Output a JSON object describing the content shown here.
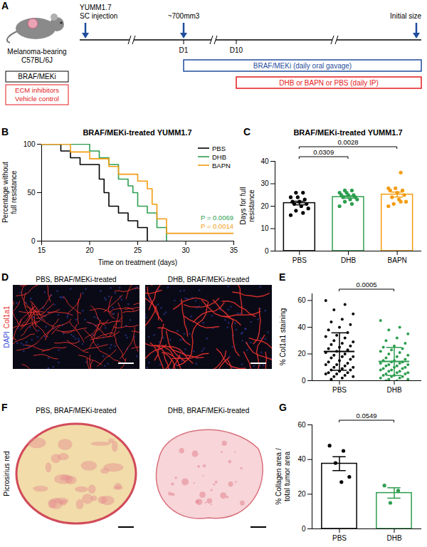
{
  "panel_labels": [
    "A",
    "B",
    "C",
    "D",
    "E",
    "F",
    "G"
  ],
  "schematic": {
    "mouse_label": [
      "Melanoma-bearing",
      "C57BL/6J"
    ],
    "black_box": "BRAF/MEKi",
    "red_box": [
      "ECM inhibitors",
      "Vehicle control"
    ],
    "timeline_labels": [
      [
        "YUMM1.7",
        "SC injection"
      ],
      [
        "~700mm3"
      ],
      [
        "Initial size"
      ]
    ],
    "days": [
      "D1",
      "D10"
    ],
    "treatments": [
      {
        "text": "BRAF/MEKi (daily oral gavage)",
        "color": "#1f4e9c"
      },
      {
        "text": "DHB or BAPN or PBS (daily IP)",
        "color": "#e31a1c"
      }
    ]
  },
  "chart_data": [
    {
      "type": "line",
      "title": "BRAF/MEKi-treated YUMM1.7",
      "x_label": "Time on treatment (days)",
      "y_label": "Percentage without full resistance",
      "xlim": [
        15,
        35
      ],
      "xticks": [
        15,
        20,
        25,
        30,
        35
      ],
      "ylim": [
        0,
        100
      ],
      "yticks": [
        0,
        50,
        100
      ],
      "line_style": "step",
      "legend": "top-right",
      "series": [
        {
          "name": "PBS",
          "color": "#000000",
          "x": [
            15,
            17,
            18,
            19,
            21,
            21.5,
            22,
            23,
            24,
            25,
            26
          ],
          "values": [
            100,
            93,
            86,
            79,
            64,
            50,
            36,
            29,
            21,
            14,
            0
          ]
        },
        {
          "name": "DHB",
          "color": "#2e9e4f",
          "x": [
            15,
            20,
            21,
            22,
            23,
            24,
            24.5,
            25,
            26,
            27,
            28
          ],
          "values": [
            100,
            93,
            86,
            79,
            64,
            57,
            50,
            36,
            29,
            14,
            0
          ]
        },
        {
          "name": "BAPN",
          "color": "#f39c12",
          "x": [
            15,
            18,
            20,
            22,
            23,
            25,
            26,
            26.5,
            27,
            28,
            35
          ],
          "values": [
            100,
            92,
            85,
            77,
            69,
            62,
            54,
            38,
            23,
            8,
            8
          ]
        }
      ],
      "annotations": [
        {
          "text": "P = 0.0069",
          "color": "#2e9e4f"
        },
        {
          "text": "P = 0.0014",
          "color": "#f39c12"
        }
      ]
    },
    {
      "type": "bar",
      "title": "BRAF/MEKi-treated YUMM1.7",
      "y_label": "Days for full resistance",
      "categories": [
        "PBS",
        "DHB",
        "BAPN"
      ],
      "values": [
        21.4,
        24.1,
        25.2
      ],
      "errors": [
        0.8,
        0.5,
        1.1
      ],
      "points": [
        [
          16,
          17,
          18,
          19,
          20,
          21,
          21,
          22,
          22,
          23,
          24,
          24,
          26,
          26
        ],
        [
          20,
          21,
          22,
          23,
          23,
          24,
          24,
          25,
          25,
          25,
          26,
          26,
          27,
          27
        ],
        [
          20,
          22,
          21,
          22,
          23,
          24,
          25,
          26,
          27,
          27,
          28,
          28,
          35
        ]
      ],
      "colors": [
        "#000000",
        "#2e9e4f",
        "#f39c12"
      ],
      "ylim": [
        0,
        40
      ],
      "yticks": [
        0,
        10,
        20,
        30,
        40
      ],
      "comparisons": [
        {
          "groups": [
            "PBS",
            "DHB"
          ],
          "label": "0.0309"
        },
        {
          "groups": [
            "PBS",
            "BAPN"
          ],
          "label": "0.0028"
        }
      ]
    },
    {
      "type": "scatter",
      "y_label": "% Col1a1 staining",
      "categories": [
        "PBS",
        "DHB"
      ],
      "values": [
        21.8,
        14.4
      ],
      "errors": [
        14,
        10.5
      ],
      "points": [
        [
          60,
          57,
          53,
          50,
          46,
          44,
          42,
          40,
          38,
          36,
          34,
          33,
          32,
          30,
          29,
          28,
          27,
          26,
          25,
          24,
          23,
          22,
          21,
          20,
          19,
          18,
          18,
          17,
          16,
          15,
          14,
          13,
          12,
          12,
          11,
          10,
          10,
          9,
          8,
          8,
          7,
          6,
          6,
          5,
          5,
          4,
          3,
          3,
          2,
          1
        ],
        [
          45,
          40,
          38,
          35,
          32,
          30,
          28,
          26,
          25,
          24,
          23,
          22,
          21,
          20,
          19,
          18,
          17,
          16,
          15,
          15,
          14,
          14,
          13,
          13,
          12,
          12,
          11,
          11,
          10,
          10,
          9,
          9,
          8,
          8,
          7,
          7,
          6,
          6,
          5,
          5,
          4,
          4,
          3,
          3,
          2,
          2,
          1,
          1,
          0,
          0
        ]
      ],
      "colors": [
        "#000000",
        "#2e9e4f"
      ],
      "ylim": [
        0,
        65
      ],
      "yticks": [
        0,
        20,
        40,
        60
      ],
      "comparisons": [
        {
          "groups": [
            "PBS",
            "DHB"
          ],
          "label": "0.0005"
        }
      ]
    },
    {
      "type": "bar",
      "y_label": "% Collagen area / total tumor area",
      "categories": [
        "PBS",
        "DHB"
      ],
      "values": [
        37.6,
        20.7
      ],
      "errors": [
        4.0,
        3.0
      ],
      "points": [
        [
          48,
          45,
          38,
          30,
          27
        ],
        [
          25,
          22,
          15
        ]
      ],
      "colors": [
        "#000000",
        "#2e9e4f"
      ],
      "ylim": [
        0,
        60
      ],
      "yticks": [
        0,
        20,
        40,
        60
      ],
      "comparisons": [
        {
          "groups": [
            "PBS",
            "DHB"
          ],
          "label": "0.0549"
        }
      ]
    }
  ],
  "microscopy": {
    "labels": [
      "PBS, BRAF/MEKi-treated",
      "DHB, BRAF/MEKi-treated"
    ],
    "channels": [
      {
        "name": "DAPI",
        "color": "#3b4fd8"
      },
      {
        "name": "Col1a1",
        "color": "#e8322e"
      }
    ]
  },
  "histology": {
    "stain": "Picrosirius red",
    "labels": [
      "PBS, BRAF/MEKi-treated",
      "DHB, BRAF/MEKi-treated"
    ]
  }
}
